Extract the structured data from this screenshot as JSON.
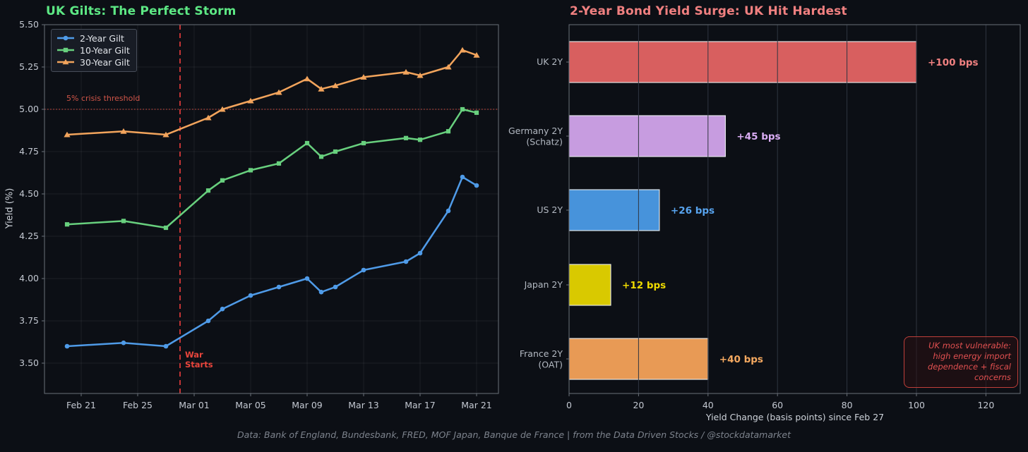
{
  "figure": {
    "background": "#0c0f15"
  },
  "footer": {
    "text": "Data: Bank of England, Bundesbank, FRED, MOF Japan, Banque de France  |  from the Data Driven Stocks / @stockdatamarket"
  },
  "chart_data": [
    {
      "type": "line",
      "title": "UK Gilts: The Perfect Storm",
      "title_color": "#5de884",
      "xlabel": "",
      "ylabel": "Yield (%)",
      "ylim": [
        3.32,
        5.5
      ],
      "grid": true,
      "legend_position": "upper left",
      "x_dates": [
        "Feb 20",
        "Feb 24",
        "Feb 27",
        "Mar 02",
        "Mar 03",
        "Mar 05",
        "Mar 07",
        "Mar 09",
        "Mar 10",
        "Mar 11",
        "Mar 13",
        "Mar 16",
        "Mar 17",
        "Mar 19",
        "Mar 20",
        "Mar 21"
      ],
      "x_day_offsets": [
        0,
        4,
        7,
        10,
        11,
        13,
        15,
        17,
        18,
        19,
        21,
        24,
        25,
        27,
        28,
        29
      ],
      "series": [
        {
          "name": "2-Year Gilt",
          "color": "#4f9be8",
          "marker": "circle",
          "values": [
            3.6,
            3.62,
            3.6,
            3.75,
            3.82,
            3.9,
            3.95,
            4.0,
            3.92,
            3.95,
            4.05,
            4.1,
            4.15,
            4.4,
            4.6,
            4.55
          ]
        },
        {
          "name": "10-Year Gilt",
          "color": "#68d07e",
          "marker": "square",
          "values": [
            4.32,
            4.34,
            4.3,
            4.52,
            4.58,
            4.64,
            4.68,
            4.8,
            4.72,
            4.75,
            4.8,
            4.83,
            4.82,
            4.87,
            5.0,
            4.98
          ]
        },
        {
          "name": "30-Year Gilt",
          "color": "#f2a45c",
          "marker": "triangle",
          "values": [
            4.85,
            4.87,
            4.85,
            4.95,
            5.0,
            5.05,
            5.1,
            5.18,
            5.12,
            5.14,
            5.19,
            5.22,
            5.2,
            5.25,
            5.35,
            5.32
          ]
        }
      ],
      "xticks": [
        {
          "label": "Feb 21",
          "day": 1
        },
        {
          "label": "Feb 25",
          "day": 5
        },
        {
          "label": "Mar 01",
          "day": 9
        },
        {
          "label": "Mar 05",
          "day": 13
        },
        {
          "label": "Mar 09",
          "day": 17
        },
        {
          "label": "Mar 13",
          "day": 21
        },
        {
          "label": "Mar 17",
          "day": 25
        },
        {
          "label": "Mar 21",
          "day": 29
        }
      ],
      "yticks": [
        {
          "label": "5.50",
          "value": 5.5
        },
        {
          "label": "5.25",
          "value": 5.25
        },
        {
          "label": "5.00",
          "value": 5.0
        },
        {
          "label": "4.75",
          "value": 4.75
        },
        {
          "label": "4.50",
          "value": 4.5
        },
        {
          "label": "4.25",
          "value": 4.25
        },
        {
          "label": "4.00",
          "value": 4.0
        },
        {
          "label": "3.75",
          "value": 3.75
        },
        {
          "label": "3.50",
          "value": 3.5
        }
      ],
      "threshold": {
        "value": 5.0,
        "label": "5% crisis threshold",
        "color": "#d05548",
        "line_color": "#c0483e"
      },
      "war": {
        "day": 8,
        "label_lines": [
          "War",
          "Starts"
        ],
        "color": "#e8453c",
        "line_color": "#e23b3b"
      }
    },
    {
      "type": "bar",
      "orientation": "horizontal",
      "title": "2-Year Bond Yield Surge: UK Hit Hardest",
      "title_color": "#f08080",
      "xlabel": "Yield Change (basis points) since Feb 27",
      "xlim": [
        0,
        130
      ],
      "categories": [
        [
          "UK 2Y"
        ],
        [
          "Germany 2Y",
          "(Schatz)"
        ],
        [
          "US 2Y"
        ],
        [
          "Japan 2Y"
        ],
        [
          "France 2Y",
          "(OAT)"
        ]
      ],
      "values": [
        100,
        45,
        26,
        12,
        40
      ],
      "bar_labels": [
        "+100 bps",
        "+45 bps",
        "+26 bps",
        "+12 bps",
        "+40 bps"
      ],
      "bar_colors": [
        "#d85f5f",
        "#c79ce0",
        "#4793db",
        "#d9c900",
        "#e89a55"
      ],
      "label_colors": [
        "#f08080",
        "#dbaef5",
        "#58a4ef",
        "#eeda00",
        "#f5a960"
      ],
      "xticks": [
        0,
        20,
        40,
        60,
        80,
        100,
        120
      ],
      "annotation": {
        "lines": [
          "UK most vulnerable:",
          "high energy import",
          "dependence + fiscal",
          "concerns"
        ],
        "color": "#e25050",
        "border_color": "#bf3f3a"
      }
    }
  ]
}
